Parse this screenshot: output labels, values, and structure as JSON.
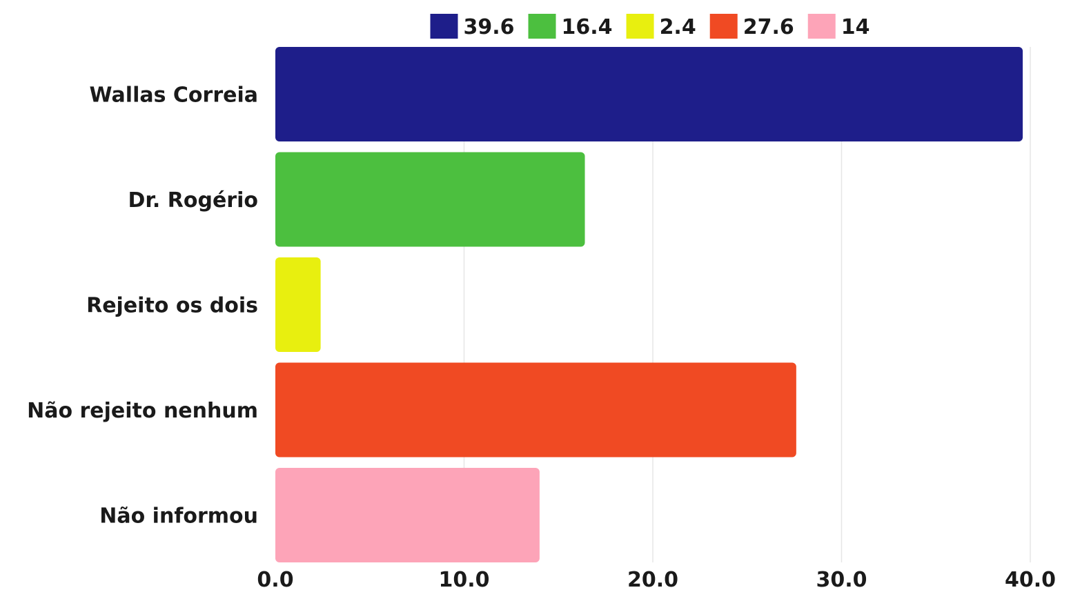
{
  "chart_data": {
    "type": "bar",
    "orientation": "horizontal",
    "categories": [
      "Wallas Correia",
      "Dr. Rogério",
      "Rejeito os dois",
      "Não rejeito nenhum",
      "Não informou"
    ],
    "values": [
      39.6,
      16.4,
      2.4,
      27.6,
      14
    ],
    "colors": [
      "#1e1e8a",
      "#4cbf3f",
      "#e8ef0f",
      "#f04a23",
      "#fda4b8"
    ],
    "legend": {
      "position": "top",
      "entries": [
        "39.6",
        "16.4",
        "2.4",
        "27.6",
        "14"
      ]
    },
    "x_ticks": [
      "0.0",
      "10.0",
      "20.0",
      "30.0",
      "40.0"
    ],
    "xlim": [
      0,
      40
    ],
    "grid": true,
    "title": "",
    "xlabel": "",
    "ylabel": ""
  }
}
